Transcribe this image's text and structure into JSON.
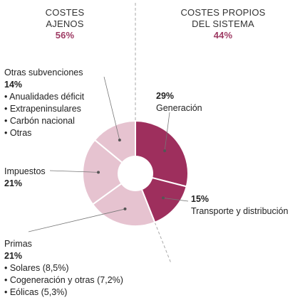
{
  "colors": {
    "own": "#9e2f5d",
    "external": "#e6c3d0",
    "divider": "#aaaaaa",
    "leader": "#777777",
    "accent": "#9e3a63"
  },
  "headers": {
    "left": {
      "line1": "COSTES",
      "line2": "AJENOS",
      "pct": "56%"
    },
    "right": {
      "line1": "COSTES PROPIOS",
      "line2": "DEL SISTEMA",
      "pct": "44%"
    }
  },
  "labels": {
    "otras_subvenciones": {
      "title": "Otras subvenciones",
      "pct": "14%",
      "items": [
        "• Anualidades déficit",
        "• Extrapeninsulares",
        "• Carbón nacional",
        "• Otras"
      ]
    },
    "generacion": {
      "pct": "29%",
      "title": "Generación"
    },
    "impuestos": {
      "title": "Impuestos",
      "pct": "21%"
    },
    "transporte": {
      "pct": "15%",
      "title": "Transporte y distribución"
    },
    "primas": {
      "title": "Primas",
      "pct": "21%",
      "items": [
        "• Solares (8,5%)",
        "• Cogeneración y otras (7,2%)",
        "• Eólicas (5,3%)"
      ]
    }
  },
  "chart_data": {
    "type": "pie",
    "donut": true,
    "categories": [
      "Generación",
      "Transporte y distribución",
      "Primas",
      "Impuestos",
      "Otras subvenciones"
    ],
    "values": [
      29,
      15,
      21,
      21,
      14
    ],
    "groups": [
      "propios",
      "propios",
      "ajenos",
      "ajenos",
      "ajenos"
    ]
  }
}
